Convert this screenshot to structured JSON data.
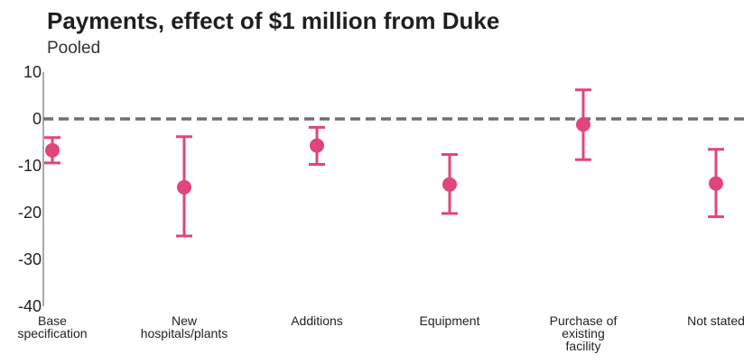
{
  "chart_data": {
    "type": "errorbar",
    "title": "Payments, effect of $1 million from Duke",
    "subtitle": "Pooled",
    "xlabel": "",
    "ylabel": "",
    "ylim": [
      -40,
      10
    ],
    "yticks": [
      10,
      0,
      -10,
      -20,
      -30,
      -40
    ],
    "reference_line": 0,
    "grid": false,
    "color": "#e0457b",
    "categories": [
      [
        "Base",
        "specification"
      ],
      [
        "New",
        "hospitals/plants"
      ],
      [
        "Additions"
      ],
      [
        "Equipment"
      ],
      [
        "Purchase of",
        "existing",
        "facility"
      ],
      [
        "Not stated"
      ]
    ],
    "points": [
      {
        "estimate": -6.7,
        "lower": -9.4,
        "upper": -4.0
      },
      {
        "estimate": -14.6,
        "lower": -25.0,
        "upper": -3.8
      },
      {
        "estimate": -5.7,
        "lower": -9.7,
        "upper": -1.8
      },
      {
        "estimate": -14.0,
        "lower": -20.2,
        "upper": -7.6
      },
      {
        "estimate": -1.2,
        "lower": -8.7,
        "upper": 6.2
      },
      {
        "estimate": -13.8,
        "lower": -20.9,
        "upper": -6.5
      }
    ]
  }
}
